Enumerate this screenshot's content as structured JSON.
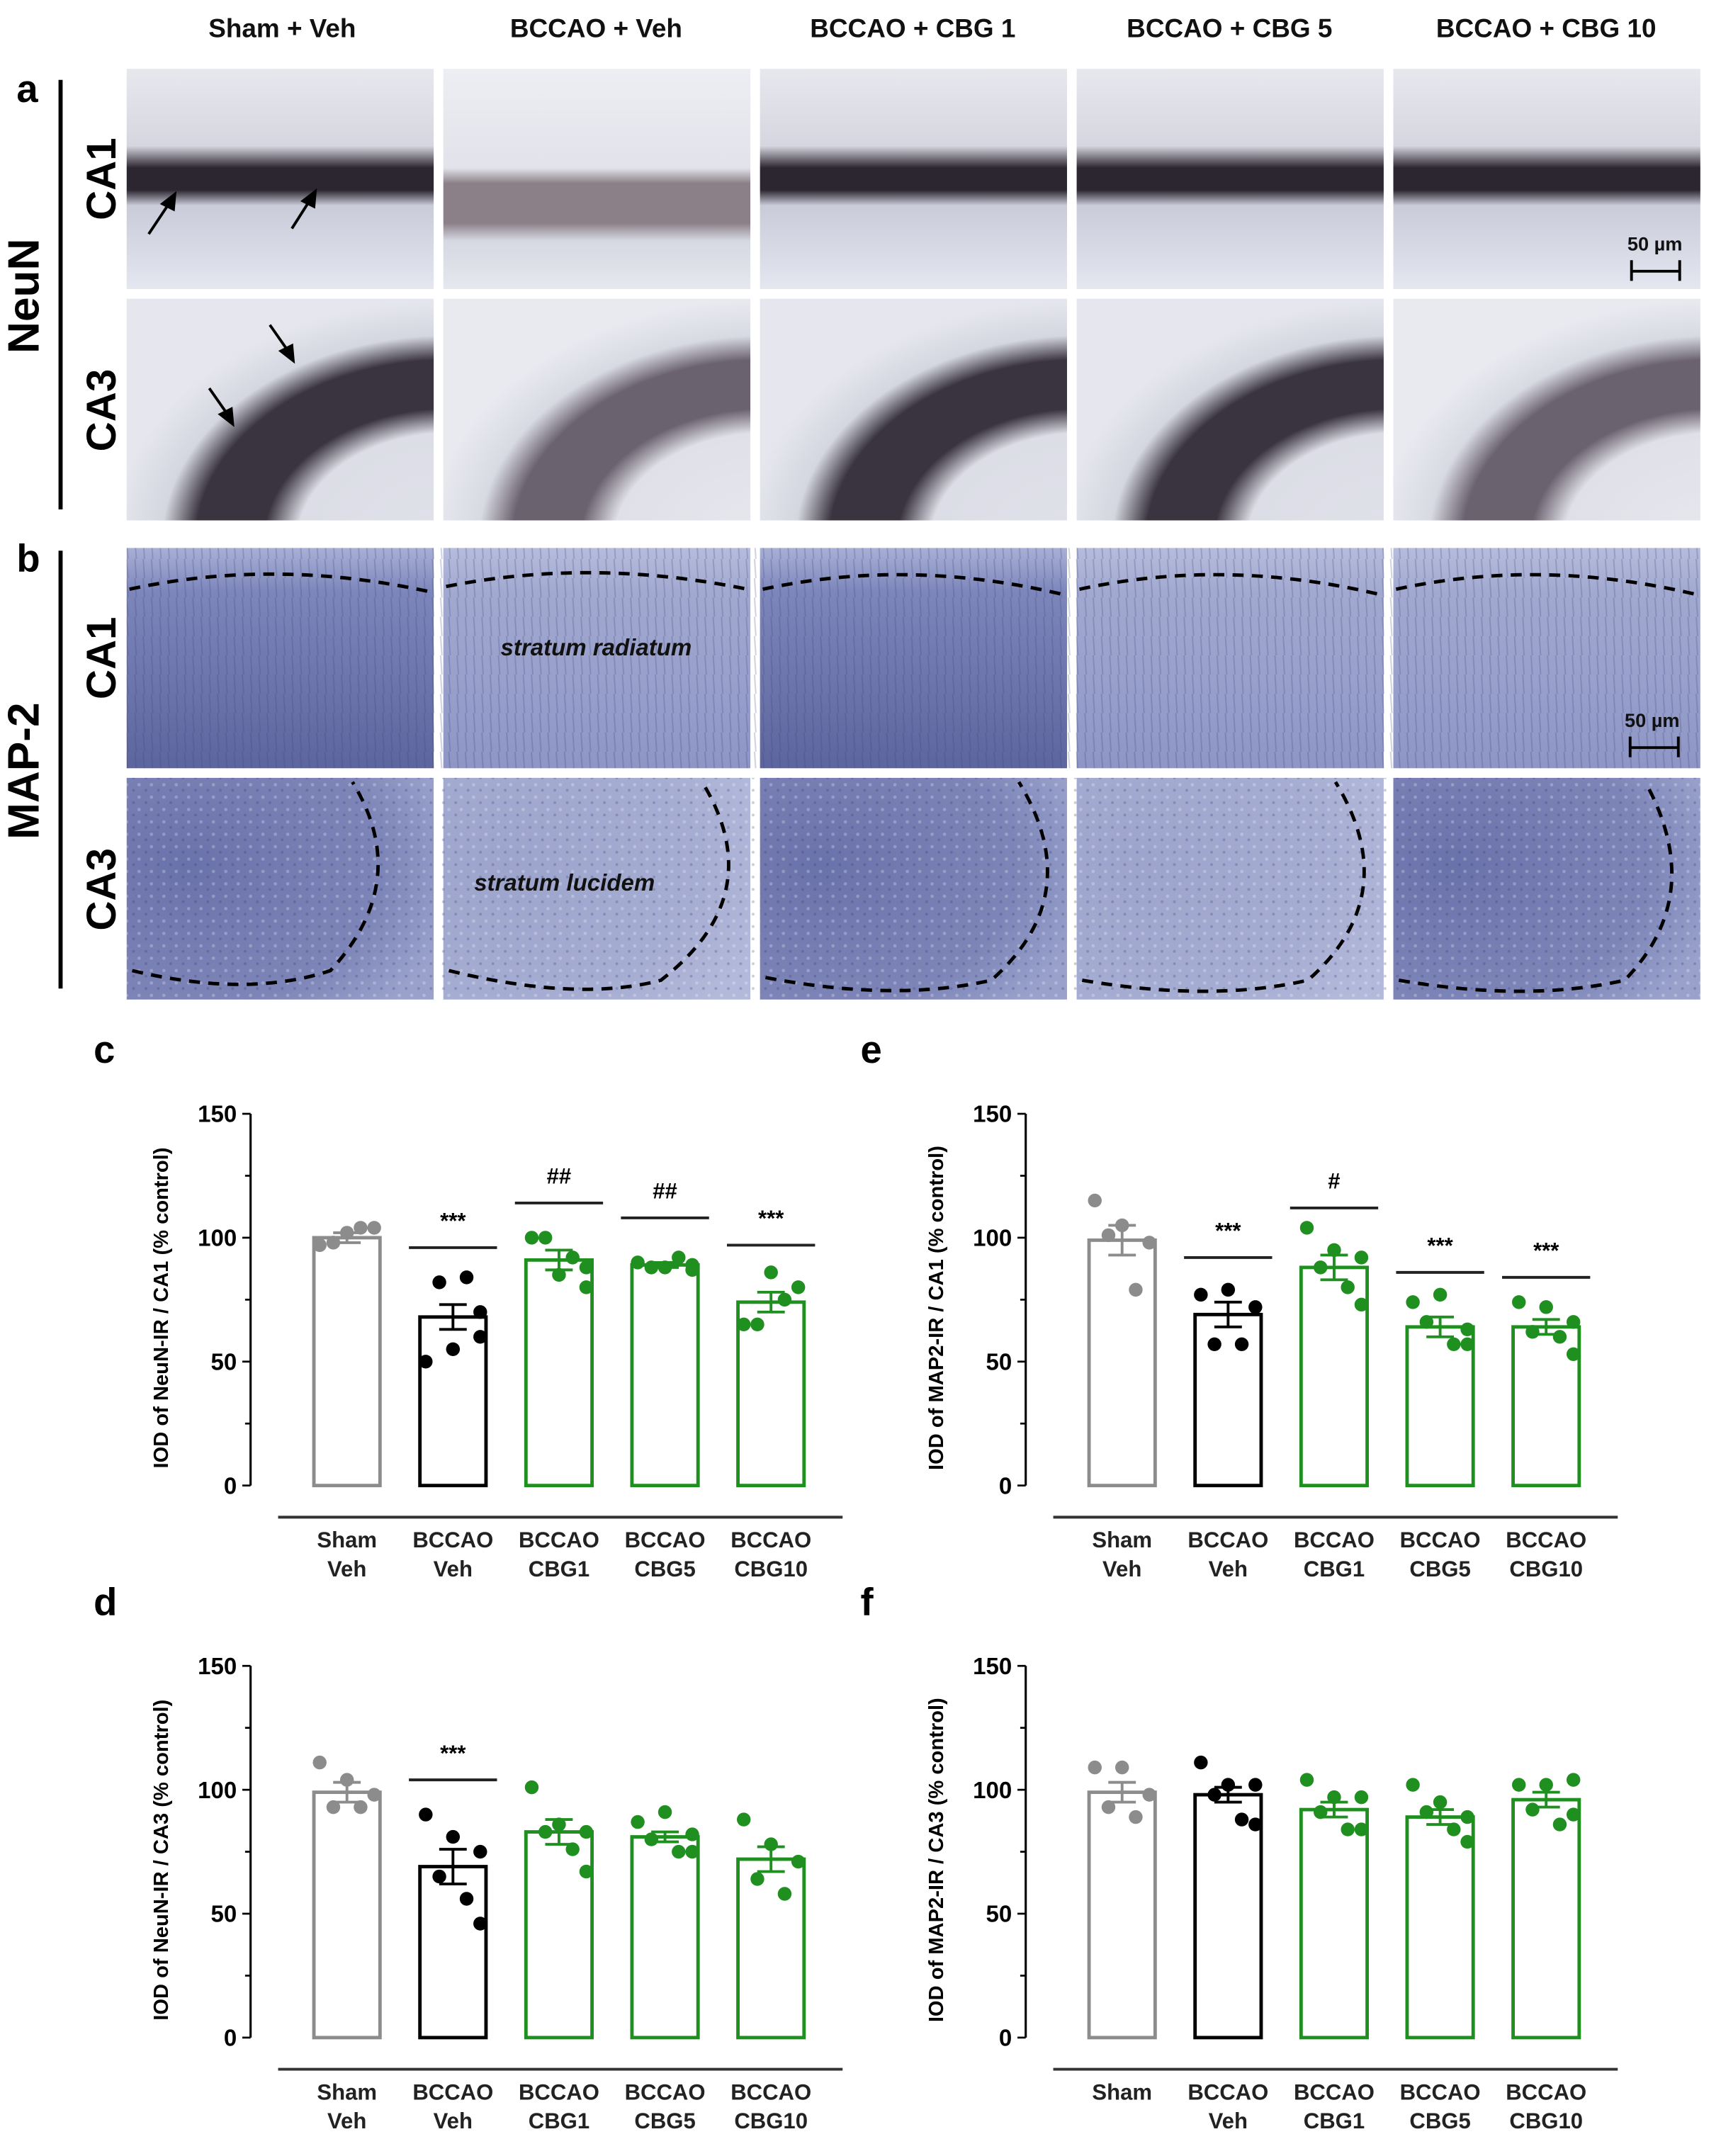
{
  "figure": {
    "column_headers": [
      "Sham + Veh",
      "BCCAO + Veh",
      "BCCAO + CBG 1",
      "BCCAO + CBG 5",
      "BCCAO + CBG 10"
    ],
    "panels": {
      "a": {
        "letter": "a",
        "stain": "NeuN",
        "rows": [
          "CA1",
          "CA3"
        ]
      },
      "b": {
        "letter": "b",
        "stain": "MAP-2",
        "rows": [
          "CA1",
          "CA3"
        ]
      }
    },
    "scale_bar_label": "50 µm",
    "region_labels": {
      "map2_ca1": "stratum radiatum",
      "map2_ca3": "stratum lucidem"
    },
    "colors": {
      "sham": "#8c8c8c",
      "bccao_veh": "#000000",
      "cbg": "#1f8f1f",
      "neun_bg": "#dfe1ec",
      "neun_cells": "#2a2530",
      "map2_bg": "#8f97c4",
      "map2_dark": "#3c4478"
    }
  },
  "chart_data": [
    {
      "panel": "c",
      "type": "bar",
      "title": "",
      "ylabel": "IOD of NeuN-IR / CA1 (% control)",
      "xlabel": "",
      "ylim": [
        0,
        150
      ],
      "yticks": [
        0,
        50,
        100,
        150
      ],
      "categories": [
        [
          "Sham",
          "Veh"
        ],
        [
          "BCCAO",
          "Veh"
        ],
        [
          "BCCAO",
          "CBG1"
        ],
        [
          "BCCAO",
          "CBG5"
        ],
        [
          "BCCAO",
          "CBG10"
        ]
      ],
      "values": [
        100,
        68,
        91,
        89,
        74
      ],
      "sem": [
        2,
        5,
        4,
        1,
        4
      ],
      "points": [
        [
          97,
          102,
          104,
          98,
          104
        ],
        [
          50,
          55,
          60,
          82,
          84,
          70
        ],
        [
          100,
          85,
          80,
          100,
          92,
          88
        ],
        [
          90,
          88,
          89,
          88,
          92,
          87
        ],
        [
          65,
          86,
          80,
          65,
          75
        ]
      ],
      "significance": [
        "",
        "***",
        "##",
        "##",
        "***"
      ],
      "sig_bar_y": [
        null,
        96,
        114,
        108,
        97
      ],
      "grid": false,
      "legend": null
    },
    {
      "panel": "e",
      "type": "bar",
      "title": "",
      "ylabel": "IOD of MAP2-IR / CA1 (% control)",
      "xlabel": "",
      "ylim": [
        0,
        150
      ],
      "yticks": [
        0,
        50,
        100,
        150
      ],
      "categories": [
        [
          "Sham",
          "Veh"
        ],
        [
          "BCCAO",
          "Veh"
        ],
        [
          "BCCAO",
          "CBG1"
        ],
        [
          "BCCAO",
          "CBG5"
        ],
        [
          "BCCAO",
          "CBG10"
        ]
      ],
      "values": [
        99,
        69,
        88,
        64,
        64
      ],
      "sem": [
        6,
        5,
        5,
        4,
        3
      ],
      "points": [
        [
          115,
          105,
          98,
          101,
          79
        ],
        [
          77,
          79,
          72,
          57,
          57
        ],
        [
          104,
          95,
          92,
          88,
          80,
          73
        ],
        [
          74,
          77,
          63,
          66,
          57,
          57
        ],
        [
          74,
          72,
          66,
          62,
          60,
          53
        ]
      ],
      "significance": [
        "",
        "***",
        "#",
        "***",
        "***"
      ],
      "sig_bar_y": [
        null,
        92,
        112,
        86,
        84
      ],
      "grid": false,
      "legend": null
    },
    {
      "panel": "d",
      "type": "bar",
      "title": "",
      "ylabel": "IOD of NeuN-IR / CA3 (% control)",
      "xlabel": "",
      "ylim": [
        0,
        150
      ],
      "yticks": [
        0,
        50,
        100,
        150
      ],
      "categories": [
        [
          "Sham",
          "Veh"
        ],
        [
          "BCCAO",
          "Veh"
        ],
        [
          "BCCAO",
          "CBG1"
        ],
        [
          "BCCAO",
          "CBG5"
        ],
        [
          "BCCAO",
          "CBG10"
        ]
      ],
      "values": [
        99,
        69,
        83,
        81,
        72
      ],
      "sem": [
        4,
        7,
        5,
        2,
        5
      ],
      "points": [
        [
          111,
          104,
          98,
          93,
          93
        ],
        [
          90,
          81,
          75,
          65,
          56,
          46
        ],
        [
          101,
          86,
          83,
          83,
          76,
          67
        ],
        [
          87,
          91,
          82,
          80,
          75,
          75
        ],
        [
          88,
          78,
          71,
          64,
          58
        ]
      ],
      "significance": [
        "",
        "***",
        "",
        "",
        ""
      ],
      "sig_bar_y": [
        null,
        104,
        null,
        null,
        null
      ],
      "grid": false,
      "legend": null
    },
    {
      "panel": "f",
      "type": "bar",
      "title": "",
      "ylabel": "IOD of MAP2-IR / CA3 (% control)",
      "xlabel": "",
      "ylim": [
        0,
        150
      ],
      "yticks": [
        0,
        50,
        100,
        150
      ],
      "categories": [
        [
          "Sham"
        ],
        [
          "BCCAO",
          "Veh"
        ],
        [
          "BCCAO",
          "CBG1"
        ],
        [
          "BCCAO",
          "CBG5"
        ],
        [
          "BCCAO",
          "CBG10"
        ]
      ],
      "values": [
        99,
        98,
        92,
        89,
        96
      ],
      "sem": [
        4,
        3,
        3,
        3,
        3
      ],
      "points": [
        [
          109,
          109,
          98,
          93,
          89
        ],
        [
          111,
          102,
          102,
          98,
          88,
          86
        ],
        [
          104,
          97,
          97,
          91,
          84,
          84
        ],
        [
          102,
          95,
          89,
          91,
          84,
          79
        ],
        [
          102,
          102,
          104,
          92,
          86,
          90
        ]
      ],
      "significance": [
        "",
        "",
        "",
        "",
        ""
      ],
      "sig_bar_y": [
        null,
        null,
        null,
        null,
        null
      ],
      "grid": false,
      "legend": null
    }
  ]
}
